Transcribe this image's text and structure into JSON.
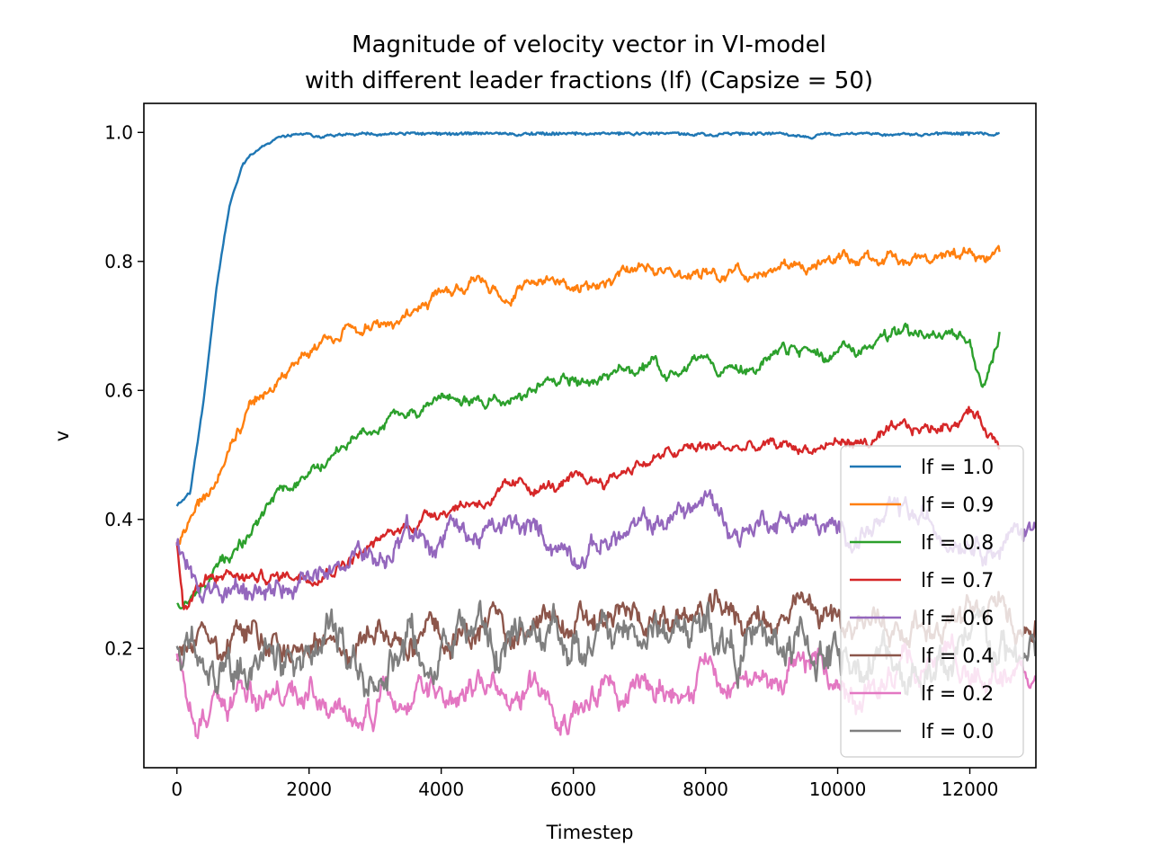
{
  "chart_data": {
    "type": "line",
    "title": [
      "Magnitude of velocity vector in VI-model",
      "with different leader fractions (lf) (Capsize = 50)"
    ],
    "xlabel": "Timestep",
    "ylabel": "v",
    "xlim": [
      -500,
      13000
    ],
    "ylim": [
      0.015,
      1.045
    ],
    "xticks": [
      0,
      2000,
      4000,
      6000,
      8000,
      10000,
      12000
    ],
    "yticks": [
      0.2,
      0.4,
      0.6,
      0.8,
      1.0
    ],
    "ytick_labels": [
      "0.2",
      "0.4",
      "0.6",
      "0.8",
      "1.0"
    ],
    "grid": false,
    "legend_position": "lower right",
    "series": [
      {
        "name": "lf = 1.0",
        "color": "#1f77b4",
        "x_end": 12450,
        "noise": 0.003,
        "x": [
          0,
          200,
          400,
          600,
          800,
          1000,
          1200,
          1500,
          2000,
          3000,
          4000,
          6000,
          8000,
          10000,
          12450
        ],
        "values": [
          0.42,
          0.44,
          0.58,
          0.76,
          0.89,
          0.955,
          0.975,
          0.992,
          0.995,
          0.997,
          0.998,
          0.999,
          0.999,
          0.998,
          0.999
        ]
      },
      {
        "name": "lf = 0.9",
        "color": "#ff7f0e",
        "x_end": 12450,
        "noise": 0.012,
        "x": [
          0,
          200,
          500,
          800,
          1200,
          1600,
          2000,
          2500,
          3000,
          3500,
          4000,
          4500,
          5000,
          5500,
          6000,
          6500,
          7000,
          7500,
          8000,
          8500,
          9000,
          9500,
          10000,
          11000,
          12000,
          12450
        ],
        "values": [
          0.37,
          0.4,
          0.43,
          0.52,
          0.58,
          0.62,
          0.66,
          0.69,
          0.7,
          0.72,
          0.75,
          0.76,
          0.74,
          0.78,
          0.77,
          0.76,
          0.78,
          0.78,
          0.79,
          0.78,
          0.8,
          0.79,
          0.8,
          0.81,
          0.82,
          0.82
        ]
      },
      {
        "name": "lf = 0.8",
        "color": "#2ca02c",
        "x_end": 12450,
        "noise": 0.012,
        "x": [
          0,
          300,
          600,
          1000,
          1500,
          2000,
          2500,
          3000,
          3500,
          4000,
          4500,
          5000,
          5500,
          6000,
          6500,
          7000,
          7500,
          8000,
          8500,
          9000,
          9500,
          10000,
          10500,
          11000,
          11500,
          12000,
          12200,
          12450
        ],
        "values": [
          0.27,
          0.29,
          0.32,
          0.37,
          0.43,
          0.47,
          0.51,
          0.54,
          0.57,
          0.58,
          0.59,
          0.59,
          0.6,
          0.62,
          0.62,
          0.63,
          0.63,
          0.65,
          0.63,
          0.65,
          0.66,
          0.65,
          0.67,
          0.68,
          0.68,
          0.67,
          0.59,
          0.69
        ]
      },
      {
        "name": "lf = 0.7",
        "color": "#d62728",
        "x_end": 12450,
        "noise": 0.012,
        "x": [
          0,
          100,
          300,
          600,
          1000,
          1500,
          2000,
          2500,
          3000,
          3500,
          4000,
          4500,
          5000,
          5500,
          6000,
          6500,
          7000,
          7500,
          8000,
          8500,
          9000,
          9500,
          10000,
          10500,
          11000,
          11500,
          12000,
          12450
        ],
        "values": [
          0.36,
          0.25,
          0.3,
          0.32,
          0.31,
          0.31,
          0.32,
          0.34,
          0.36,
          0.39,
          0.42,
          0.43,
          0.44,
          0.45,
          0.45,
          0.46,
          0.49,
          0.5,
          0.51,
          0.51,
          0.51,
          0.51,
          0.52,
          0.52,
          0.53,
          0.54,
          0.57,
          0.52
        ]
      },
      {
        "name": "lf = 0.6",
        "color": "#9467bd",
        "x_end": 13000,
        "noise": 0.022,
        "x": [
          0,
          300,
          700,
          1000,
          1500,
          2000,
          2500,
          3000,
          3500,
          4000,
          4500,
          5000,
          5500,
          6000,
          6500,
          7000,
          7500,
          8000,
          8500,
          9000,
          9500,
          10000,
          10500,
          11000,
          11500,
          12000,
          12500,
          13000
        ],
        "values": [
          0.37,
          0.3,
          0.28,
          0.27,
          0.3,
          0.3,
          0.32,
          0.33,
          0.36,
          0.37,
          0.37,
          0.38,
          0.37,
          0.36,
          0.37,
          0.38,
          0.4,
          0.43,
          0.38,
          0.41,
          0.4,
          0.37,
          0.39,
          0.4,
          0.38,
          0.39,
          0.37,
          0.39
        ]
      },
      {
        "name": "lf = 0.4",
        "color": "#8c564b",
        "x_end": 13000,
        "noise": 0.028,
        "x": [
          0,
          500,
          1000,
          2000,
          3000,
          4000,
          5000,
          6000,
          7000,
          8000,
          9000,
          10000,
          11000,
          12000,
          13000
        ],
        "values": [
          0.18,
          0.19,
          0.2,
          0.21,
          0.22,
          0.22,
          0.23,
          0.23,
          0.24,
          0.25,
          0.25,
          0.24,
          0.24,
          0.25,
          0.25
        ]
      },
      {
        "name": "lf = 0.2",
        "color": "#e377c2",
        "x_end": 13000,
        "noise": 0.028,
        "x": [
          0,
          300,
          1000,
          2000,
          3000,
          4000,
          5000,
          6000,
          7000,
          8000,
          9000,
          10000,
          11000,
          12000,
          13000
        ],
        "values": [
          0.19,
          0.11,
          0.12,
          0.1,
          0.11,
          0.12,
          0.13,
          0.14,
          0.15,
          0.17,
          0.15,
          0.15,
          0.16,
          0.17,
          0.16
        ]
      },
      {
        "name": "lf = 0.0",
        "color": "#7f7f7f",
        "x_end": 13000,
        "noise": 0.04,
        "x": [
          0,
          1000,
          2000,
          3000,
          4000,
          5000,
          6000,
          7000,
          8000,
          9000,
          10000,
          11000,
          12000,
          13000
        ],
        "values": [
          0.18,
          0.19,
          0.18,
          0.18,
          0.19,
          0.21,
          0.2,
          0.22,
          0.23,
          0.2,
          0.19,
          0.18,
          0.18,
          0.18
        ]
      }
    ]
  }
}
